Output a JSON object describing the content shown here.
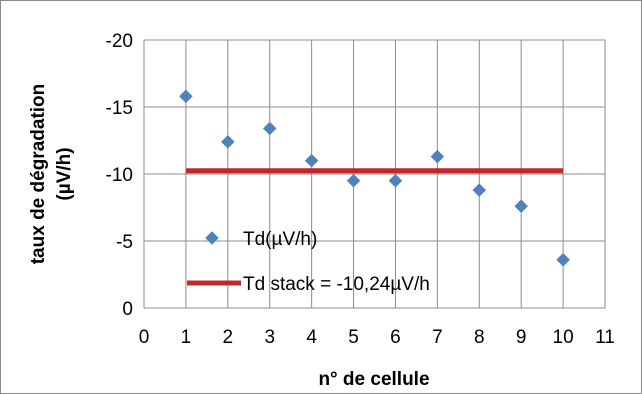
{
  "chart_data": {
    "type": "scatter",
    "xlabel": "n° de cellule",
    "ylabel_line1": "taux de dégradation",
    "ylabel_line2": "(µV/h)",
    "xlim": [
      0,
      11
    ],
    "ylim": [
      0,
      -20
    ],
    "y_reversed": true,
    "x_ticks": [
      0,
      1,
      2,
      3,
      4,
      5,
      6,
      7,
      8,
      9,
      10,
      11
    ],
    "y_ticks": [
      0,
      -5,
      -10,
      -15,
      -20
    ],
    "grid": "both",
    "legend_placement": "inside-lower-left",
    "series": [
      {
        "name": "Td(µV/h)",
        "kind": "scatter",
        "marker": "diamond",
        "color": "#4f81bd",
        "x": [
          1,
          2,
          3,
          4,
          5,
          6,
          7,
          8,
          9,
          10
        ],
        "y": [
          -15.8,
          -12.4,
          -13.4,
          -11.0,
          -9.5,
          -9.5,
          -11.3,
          -8.8,
          -7.6,
          -3.6
        ]
      },
      {
        "name": "Td stack = -10,24µV/h",
        "kind": "line",
        "color": "#c0282b",
        "x": [
          1,
          10
        ],
        "y": [
          -10.24,
          -10.24
        ]
      }
    ]
  }
}
